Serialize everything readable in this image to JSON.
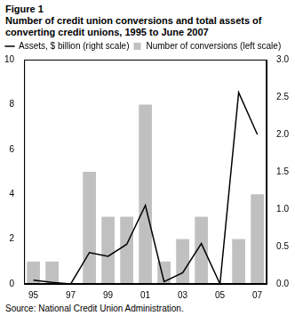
{
  "chart_data": {
    "type": "bar",
    "title": "Figure 1",
    "subtitle": "Number of credit union conversions and total assets of converting credit unions, 1995 to June 2007",
    "source": "Source: National Credit Union Administration.",
    "categories": [
      "95",
      null,
      "97",
      null,
      "99",
      null,
      "01",
      null,
      "03",
      null,
      "05",
      null,
      "07"
    ],
    "series": [
      {
        "name": "Number of conversions (left scale)",
        "type": "bar",
        "color": "#c0c0c0",
        "values": [
          1,
          1,
          0,
          5,
          3,
          3,
          8,
          1,
          2,
          3,
          0,
          2,
          4
        ]
      },
      {
        "name": "Assets, $ billion (right scale)",
        "type": "line",
        "color": "#000000",
        "axis": "y2",
        "values": [
          0.05,
          0.02,
          0.0,
          0.42,
          0.37,
          0.53,
          1.05,
          0.03,
          0.15,
          0.54,
          0.0,
          2.56,
          2.0
        ]
      }
    ],
    "ylim": [
      0,
      10
    ],
    "yticks": [
      0,
      2,
      4,
      6,
      8,
      10
    ],
    "y2lim": [
      0,
      3
    ],
    "y2ticks": [
      {
        "value": 0,
        "label": "0.0"
      },
      {
        "value": 0.5,
        "label": "0.5"
      },
      {
        "value": 1,
        "label": "1.0"
      },
      {
        "value": 1.5,
        "label": "1.5"
      },
      {
        "value": 2,
        "label": "2.0"
      },
      {
        "value": 2.5,
        "label": "2.5"
      },
      {
        "value": 3,
        "label": "3.0"
      }
    ],
    "grid": false,
    "legend": "top-left"
  }
}
